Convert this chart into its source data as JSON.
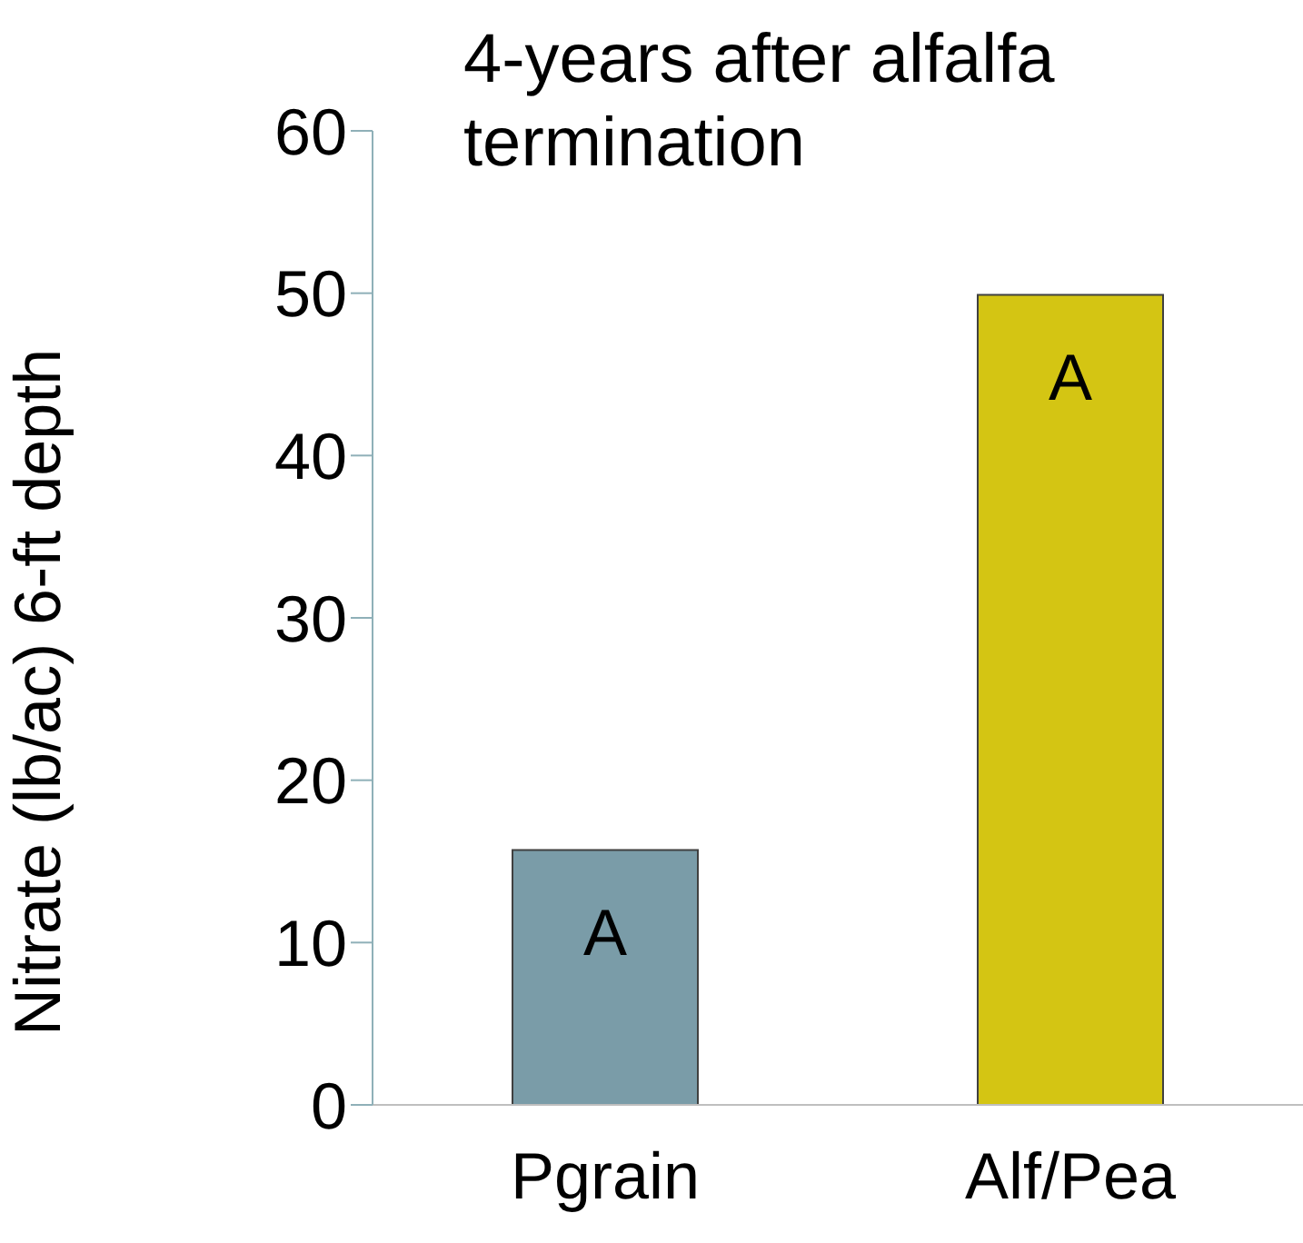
{
  "chart_data": {
    "type": "bar",
    "title": "4-years after alfalfa termination",
    "ylabel": "Nitrate (lb/ac) 6-ft depth",
    "categories": [
      "Pgrain",
      "Alf/Pea"
    ],
    "values": [
      15.7,
      49.9
    ],
    "colors": [
      "#7a9ca8",
      "#d4c513"
    ],
    "ylim": [
      0,
      60
    ],
    "yticks": [
      0,
      10,
      20,
      30,
      40,
      50,
      60
    ],
    "grid": false,
    "legend": false,
    "annotations": [
      "A",
      "A"
    ]
  }
}
